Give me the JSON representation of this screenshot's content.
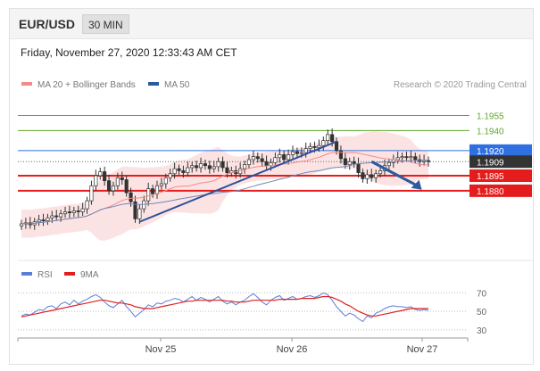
{
  "header": {
    "symbol": "EUR/USD",
    "timeframe": "30 MIN"
  },
  "datetime": "Friday, November 27, 2020 12:33:43 AM CET",
  "legend": [
    {
      "label": "MA 20 + Bollinger Bands",
      "color": "#f28b8b"
    },
    {
      "label": "MA 50",
      "color": "#2c5aa0"
    }
  ],
  "credit": "Research © 2020 Trading Central",
  "rsi_legend": [
    {
      "label": "RSI",
      "color": "#5b7fd6"
    },
    {
      "label": "9MA",
      "color": "#e02020"
    }
  ],
  "chart_data": [
    {
      "type": "line",
      "title": "EUR/USD",
      "x_ticks": [
        "Nov 25",
        "Nov 26",
        "Nov 27"
      ],
      "ylim": [
        1.1815,
        1.1975
      ],
      "close": [
        1.1847,
        1.1848,
        1.1846,
        1.1849,
        1.1851,
        1.185,
        1.1853,
        1.1855,
        1.1854,
        1.1857,
        1.1859,
        1.1858,
        1.186,
        1.1859,
        1.1862,
        1.187,
        1.1885,
        1.1895,
        1.1899,
        1.189,
        1.188,
        1.1885,
        1.1893,
        1.1891,
        1.1878,
        1.1869,
        1.1852,
        1.1862,
        1.187,
        1.1882,
        1.1877,
        1.1885,
        1.1887,
        1.1893,
        1.1897,
        1.1902,
        1.19,
        1.1898,
        1.1903,
        1.1905,
        1.1903,
        1.1907,
        1.1905,
        1.1902,
        1.1904,
        1.1909,
        1.1903,
        1.1898,
        1.19,
        1.1897,
        1.1902,
        1.1906,
        1.1911,
        1.1914,
        1.1912,
        1.1909,
        1.1905,
        1.1908,
        1.1913,
        1.1916,
        1.1911,
        1.1916,
        1.1919,
        1.1917,
        1.1918,
        1.1922,
        1.1924,
        1.1923,
        1.1925,
        1.193,
        1.1936,
        1.1929,
        1.192,
        1.1912,
        1.1906,
        1.1909,
        1.1907,
        1.1898,
        1.1892,
        1.1896,
        1.1893,
        1.1897,
        1.19,
        1.1905,
        1.1908,
        1.1911,
        1.1913,
        1.1914,
        1.1913,
        1.1914,
        1.1911,
        1.1909,
        1.191,
        1.1909
      ],
      "lines": [
        {
          "label": "1.1955",
          "value": 1.1955,
          "color": "#5fa82a"
        },
        {
          "label": "1.1940",
          "value": 1.194,
          "color": "#5fa82a"
        },
        {
          "label": "1.1920",
          "value": 1.192,
          "color": "#2f6fe0"
        },
        {
          "label": "1.1909",
          "value": 1.1909,
          "color": "#333333"
        },
        {
          "label": "1.1895",
          "value": 1.1895,
          "color": "#e51c1c"
        },
        {
          "label": "1.1880",
          "value": 1.188,
          "color": "#e51c1c"
        }
      ],
      "trendline": [
        [
          1.1849,
          27
        ],
        [
          1.1929,
          72
        ]
      ],
      "projection_arrow": [
        [
          1.1909,
          80
        ],
        [
          1.1881,
          87
        ]
      ]
    },
    {
      "type": "line",
      "title": "RSI",
      "ylim": [
        25,
        80
      ],
      "y_ticks": [
        70,
        50,
        30
      ],
      "rsi": [
        45,
        47,
        46,
        49,
        52,
        51,
        55,
        56,
        53,
        58,
        60,
        57,
        62,
        58,
        61,
        63,
        66,
        68,
        65,
        60,
        56,
        54,
        58,
        62,
        55,
        50,
        44,
        48,
        52,
        57,
        55,
        59,
        58,
        61,
        62,
        64,
        63,
        60,
        63,
        66,
        62,
        65,
        63,
        60,
        63,
        66,
        61,
        58,
        60,
        57,
        60,
        62,
        66,
        69,
        65,
        60,
        57,
        62,
        65,
        67,
        62,
        64,
        66,
        63,
        64,
        66,
        67,
        65,
        67,
        70,
        68,
        62,
        55,
        50,
        45,
        48,
        46,
        42,
        39,
        45,
        43,
        48,
        50,
        53,
        55,
        56,
        55,
        55,
        54,
        55,
        52,
        51,
        52,
        51
      ],
      "ma9": [
        44,
        45,
        46,
        47,
        48,
        49,
        50,
        51,
        52,
        53,
        54,
        55,
        56,
        57,
        58,
        59,
        60,
        61,
        62,
        62,
        61,
        60,
        59,
        59,
        58,
        57,
        55,
        54,
        53,
        53,
        53,
        54,
        55,
        56,
        57,
        58,
        59,
        60,
        61,
        61,
        62,
        62,
        62,
        62,
        62,
        62,
        62,
        61,
        61,
        60,
        60,
        60,
        61,
        62,
        62,
        62,
        62,
        62,
        62,
        63,
        63,
        63,
        63,
        63,
        64,
        64,
        64,
        64,
        65,
        66,
        66,
        65,
        63,
        61,
        58,
        56,
        53,
        50,
        48,
        46,
        45,
        45,
        46,
        47,
        48,
        49,
        50,
        51,
        52,
        53,
        53,
        53,
        53,
        53
      ]
    }
  ]
}
